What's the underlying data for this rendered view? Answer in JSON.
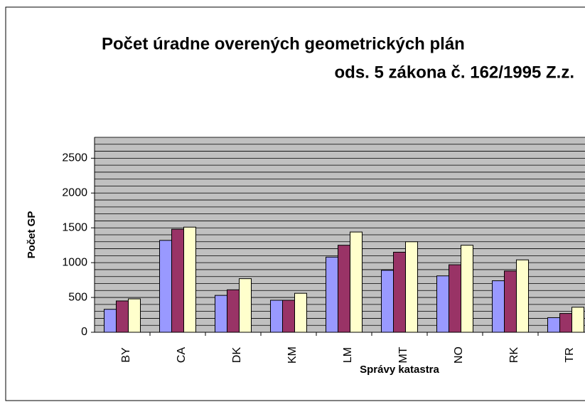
{
  "chart_data": {
    "type": "bar",
    "title_lines": [
      "Počet úradne overených geometrických plán",
      "ods. 5 zákona č. 162/1995 Z.z."
    ],
    "y_label": "Počet GP",
    "x_label": "Správy katastra",
    "categories": [
      "BY",
      "CA",
      "DK",
      "KM",
      "LM",
      "MT",
      "NO",
      "RK",
      "TR"
    ],
    "series": [
      {
        "color": "#9999ff",
        "values": [
          330,
          1320,
          530,
          460,
          1080,
          890,
          810,
          740,
          210
        ]
      },
      {
        "color": "#993366",
        "values": [
          450,
          1480,
          610,
          460,
          1250,
          1150,
          970,
          880,
          270
        ]
      },
      {
        "color": "#ffffcc",
        "values": [
          480,
          1510,
          770,
          560,
          1440,
          1300,
          1250,
          1040,
          360
        ]
      }
    ],
    "ylim": [
      0,
      2800
    ],
    "yticks": [
      0,
      500,
      1000,
      1500,
      2000,
      2500
    ],
    "minor_yticks": [
      100,
      200,
      300,
      400,
      600,
      700,
      800,
      900,
      1100,
      1200,
      1300,
      1400,
      1600,
      1700,
      1800,
      1900,
      2100,
      2200,
      2300,
      2400,
      2600,
      2700,
      2800
    ],
    "grid": true,
    "plot_background": "#c0c0c0"
  }
}
